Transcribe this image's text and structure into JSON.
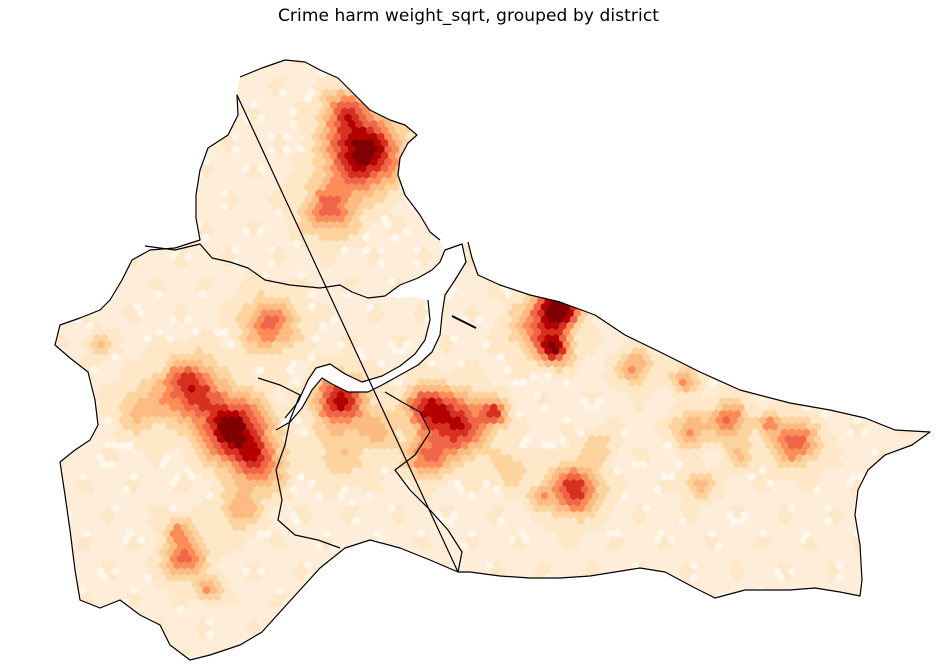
{
  "figure": {
    "title": "Crime harm weight_sqrt, grouped by district"
  },
  "map": {
    "background_color": "#ffffff",
    "district_outline_color": "#000000",
    "colormap": "OrRd",
    "colormap_stops": [
      "#fff7ec",
      "#fee8c8",
      "#fdd49e",
      "#fdbb84",
      "#fc8d59",
      "#ef6548",
      "#d7301f",
      "#b30000",
      "#7f0000"
    ]
  }
}
